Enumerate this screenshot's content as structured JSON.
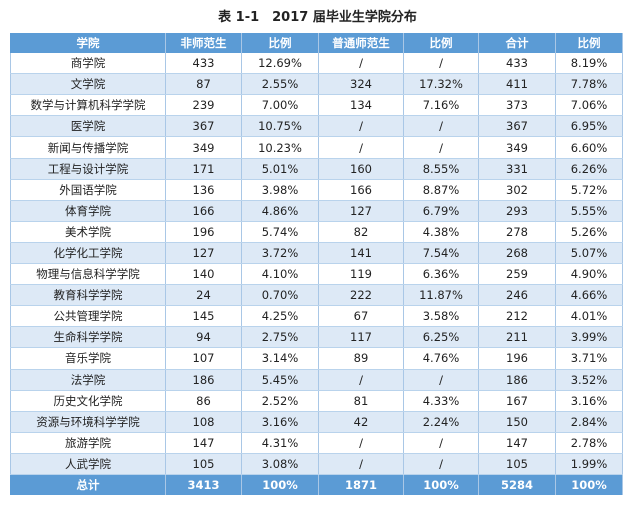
{
  "title": "表 1-1　2017 届毕业生学院分布",
  "headers": [
    "学院",
    "非师范生",
    "比例",
    "普通师范生",
    "比例",
    "合计",
    "比例"
  ],
  "rows": [
    [
      "商学院",
      "433",
      "12.69%",
      "/",
      "/",
      "433",
      "8.19%"
    ],
    [
      "文学院",
      "87",
      "2.55%",
      "324",
      "17.32%",
      "411",
      "7.78%"
    ],
    [
      "数学与计算机科学学院",
      "239",
      "7.00%",
      "134",
      "7.16%",
      "373",
      "7.06%"
    ],
    [
      "医学院",
      "367",
      "10.75%",
      "/",
      "/",
      "367",
      "6.95%"
    ],
    [
      "新闻与传播学院",
      "349",
      "10.23%",
      "/",
      "/",
      "349",
      "6.60%"
    ],
    [
      "工程与设计学院",
      "171",
      "5.01%",
      "160",
      "8.55%",
      "331",
      "6.26%"
    ],
    [
      "外国语学院",
      "136",
      "3.98%",
      "166",
      "8.87%",
      "302",
      "5.72%"
    ],
    [
      "体育学院",
      "166",
      "4.86%",
      "127",
      "6.79%",
      "293",
      "5.55%"
    ],
    [
      "美术学院",
      "196",
      "5.74%",
      "82",
      "4.38%",
      "278",
      "5.26%"
    ],
    [
      "化学化工学院",
      "127",
      "3.72%",
      "141",
      "7.54%",
      "268",
      "5.07%"
    ],
    [
      "物理与信息科学学院",
      "140",
      "4.10%",
      "119",
      "6.36%",
      "259",
      "4.90%"
    ],
    [
      "教育科学学院",
      "24",
      "0.70%",
      "222",
      "11.87%",
      "246",
      "4.66%"
    ],
    [
      "公共管理学院",
      "145",
      "4.25%",
      "67",
      "3.58%",
      "212",
      "4.01%"
    ],
    [
      "生命科学学院",
      "94",
      "2.75%",
      "117",
      "6.25%",
      "211",
      "3.99%"
    ],
    [
      "音乐学院",
      "107",
      "3.14%",
      "89",
      "4.76%",
      "196",
      "3.71%"
    ],
    [
      "法学院",
      "186",
      "5.45%",
      "/",
      "/",
      "186",
      "3.52%"
    ],
    [
      "历史文化学院",
      "86",
      "2.52%",
      "81",
      "4.33%",
      "167",
      "3.16%"
    ],
    [
      "资源与环境科学学院",
      "108",
      "3.16%",
      "42",
      "2.24%",
      "150",
      "2.84%"
    ],
    [
      "旅游学院",
      "147",
      "4.31%",
      "/",
      "/",
      "147",
      "2.78%"
    ],
    [
      "人武学院",
      "105",
      "3.08%",
      "/",
      "/",
      "105",
      "1.99%"
    ]
  ],
  "total": [
    "总计",
    "3413",
    "100%",
    "1871",
    "100%",
    "5284",
    "100%"
  ],
  "colors": {
    "header_bg": "#5b9bd5",
    "stripe": "#dde9f6"
  }
}
